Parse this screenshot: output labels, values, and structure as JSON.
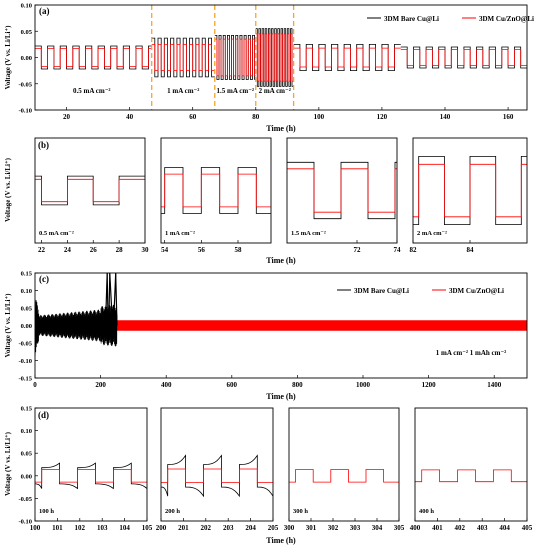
{
  "figure": {
    "panels": [
      {
        "id": "a",
        "label": "(a)",
        "xlabel": "Time (h)",
        "ylabel": "Voltage (V vs. Li/Li⁺)",
        "xlim": [
          10,
          166
        ],
        "ylim": [
          -0.1,
          0.1
        ],
        "xticks": [
          20,
          40,
          60,
          80,
          100,
          120,
          140,
          160
        ],
        "yticks": [
          -0.1,
          -0.05,
          0.0,
          0.05,
          0.1
        ],
        "ytick_labels": [
          "-0.10",
          "-0.05",
          "0.00",
          "0.05",
          "0.10"
        ],
        "legend": [
          "3DM Bare Cu@Li",
          "3DM Cu/ZnO@Li"
        ],
        "segments": [
          {
            "t0": 10,
            "t1": 47,
            "period": 4,
            "amp_black": 0.022,
            "amp_red": 0.017
          },
          {
            "t0": 47,
            "t1": 67,
            "period": 2,
            "amp_black": 0.037,
            "amp_red": 0.025
          },
          {
            "t0": 67,
            "t1": 80,
            "period": 1.33,
            "amp_black": 0.042,
            "amp_red": 0.035
          },
          {
            "t0": 80,
            "t1": 92,
            "period": 1.0,
            "amp_black": 0.055,
            "amp_red": 0.045
          },
          {
            "t0": 92,
            "t1": 126,
            "period": 4,
            "amp_black": 0.025,
            "amp_red": 0.018
          },
          {
            "t0": 126,
            "t1": 166,
            "period": 4,
            "amp_black": 0.02,
            "amp_red": 0.015
          }
        ],
        "dashed_lines": [
          47,
          67,
          80,
          92
        ],
        "annotations": [
          {
            "text": "0.5 mA cm⁻²",
            "x": 28,
            "y": -0.068
          },
          {
            "text": "1 mA cm⁻²",
            "x": 57,
            "y": -0.068
          },
          {
            "text": "1.5 mA cm⁻²",
            "x": 73.5,
            "y": -0.068
          },
          {
            "text": "2 mA cm⁻²",
            "x": 86,
            "y": -0.068
          }
        ]
      },
      {
        "id": "b",
        "label": "(b)",
        "xlabel": "Time (h)",
        "ylabel": "Voltage (V vs. Li/Li⁺)",
        "subplots": [
          {
            "xlim": [
              21.5,
              30
            ],
            "xticks": [
              22,
              24,
              26,
              28,
              30
            ],
            "ylim": [
              -0.08,
              0.08
            ],
            "period": 4,
            "amp_black": 0.022,
            "amp_red": 0.017,
            "phase": 20,
            "text": "0.5 mA cm⁻²"
          },
          {
            "xlim": [
              53.8,
              59.8
            ],
            "xticks": [
              54,
              56,
              58
            ],
            "ylim": [
              -0.08,
              0.08
            ],
            "period": 2,
            "amp_black": 0.035,
            "amp_red": 0.025,
            "phase": 54,
            "text": "1 mA cm⁻²"
          },
          {
            "xlim": [
              68.5,
              74
            ],
            "xticks": [
              72,
              74
            ],
            "ylim": [
              -0.08,
              0.08
            ],
            "period": 2.7,
            "amp_black": 0.043,
            "amp_red": 0.033,
            "phase": 68.5,
            "text": "1.5 mA cm⁻²"
          },
          {
            "xlim": [
              82,
              86
            ],
            "xticks": [
              82,
              84
            ],
            "ylim": [
              -0.08,
              0.08
            ],
            "period": 1.8,
            "amp_black": 0.052,
            "amp_red": 0.04,
            "phase": 82.2,
            "text": "2 mA cm⁻²"
          }
        ]
      },
      {
        "id": "c",
        "label": "(c)",
        "xlabel": "Time (h)",
        "ylabel": "Voltage (V vs. Li/Li⁺)",
        "xlim": [
          0,
          1500
        ],
        "ylim": [
          -0.15,
          0.15
        ],
        "xticks": [
          0,
          200,
          400,
          600,
          800,
          1000,
          1200,
          1400
        ],
        "yticks": [
          -0.15,
          -0.1,
          -0.05,
          0.0,
          0.05,
          0.1,
          0.15
        ],
        "ytick_labels": [
          "-0.15",
          "-0.10",
          "-0.05",
          "0.00",
          "0.05",
          "0.10",
          "0.15"
        ],
        "legend": [
          "3DM Bare Cu@Li",
          "3DM Cu/ZnO@Li"
        ],
        "black_end": 250,
        "red_amp": 0.015,
        "annotation": "1 mA cm⁻² 1 mAh cm⁻²"
      },
      {
        "id": "d",
        "label": "(d)",
        "xlabel": "Time (h)",
        "ylabel": "Voltage (V vs. Li/Li⁺)",
        "ylim": [
          -0.1,
          0.15
        ],
        "yticks": [
          -0.1,
          -0.05,
          0.0,
          0.05,
          0.1,
          0.15
        ],
        "ytick_labels": [
          "-0.10",
          "-0.05",
          "0.00",
          "0.05",
          "0.10",
          "0.15"
        ],
        "subplots": [
          {
            "xlim": [
              100,
              105
            ],
            "xticks": [
              100,
              101,
              102,
              103,
              104,
              105
            ],
            "amp_black": 0.018,
            "amp_red": 0.014,
            "text": "100 h",
            "spike": 0.01
          },
          {
            "xlim": [
              200,
              205
            ],
            "xticks": [
              200,
              201,
              202,
              203,
              204,
              205
            ],
            "amp_black": 0.025,
            "amp_red": 0.015,
            "text": "200 h",
            "spike": 0.02
          },
          {
            "xlim": [
              300,
              305
            ],
            "xticks": [
              300,
              301,
              302,
              303,
              304,
              305
            ],
            "amp_black": null,
            "amp_red": 0.014,
            "text": "300 h",
            "spike": 0
          },
          {
            "xlim": [
              400,
              405
            ],
            "xticks": [
              400,
              401,
              402,
              403,
              404,
              405
            ],
            "amp_black": null,
            "amp_red": 0.013,
            "text": "400 h",
            "spike": 0
          }
        ]
      }
    ]
  },
  "chart_data": [
    {
      "type": "line",
      "panel": "a",
      "series": [
        {
          "name": "3DM Bare Cu@Li",
          "color": "#000000"
        },
        {
          "name": "3DM Cu/ZnO@Li",
          "color": "#ff0000"
        }
      ],
      "ylabel": "Voltage (V vs. Li/Li⁺)",
      "xlabel": "Time (h)",
      "xlim": [
        10,
        166
      ],
      "ylim": [
        -0.1,
        0.1
      ]
    },
    {
      "type": "line",
      "panel": "b",
      "xlabel": "Time (h)",
      "ylabel": "Voltage (V vs. Li/Li⁺)"
    },
    {
      "type": "line",
      "panel": "c",
      "series": [
        {
          "name": "3DM Bare Cu@Li",
          "color": "#000000"
        },
        {
          "name": "3DM Cu/ZnO@Li",
          "color": "#ff0000"
        }
      ],
      "xlabel": "Time (h)",
      "ylabel": "Voltage (V vs. Li/Li⁺)",
      "xlim": [
        0,
        1500
      ],
      "ylim": [
        -0.15,
        0.15
      ]
    },
    {
      "type": "line",
      "panel": "d",
      "xlabel": "Time (h)",
      "ylabel": "Voltage (V vs. Li/Li⁺)",
      "ylim": [
        -0.1,
        0.15
      ]
    }
  ],
  "colors": {
    "black": "#000000",
    "red": "#ff0000",
    "dashed": "#f5a623"
  }
}
